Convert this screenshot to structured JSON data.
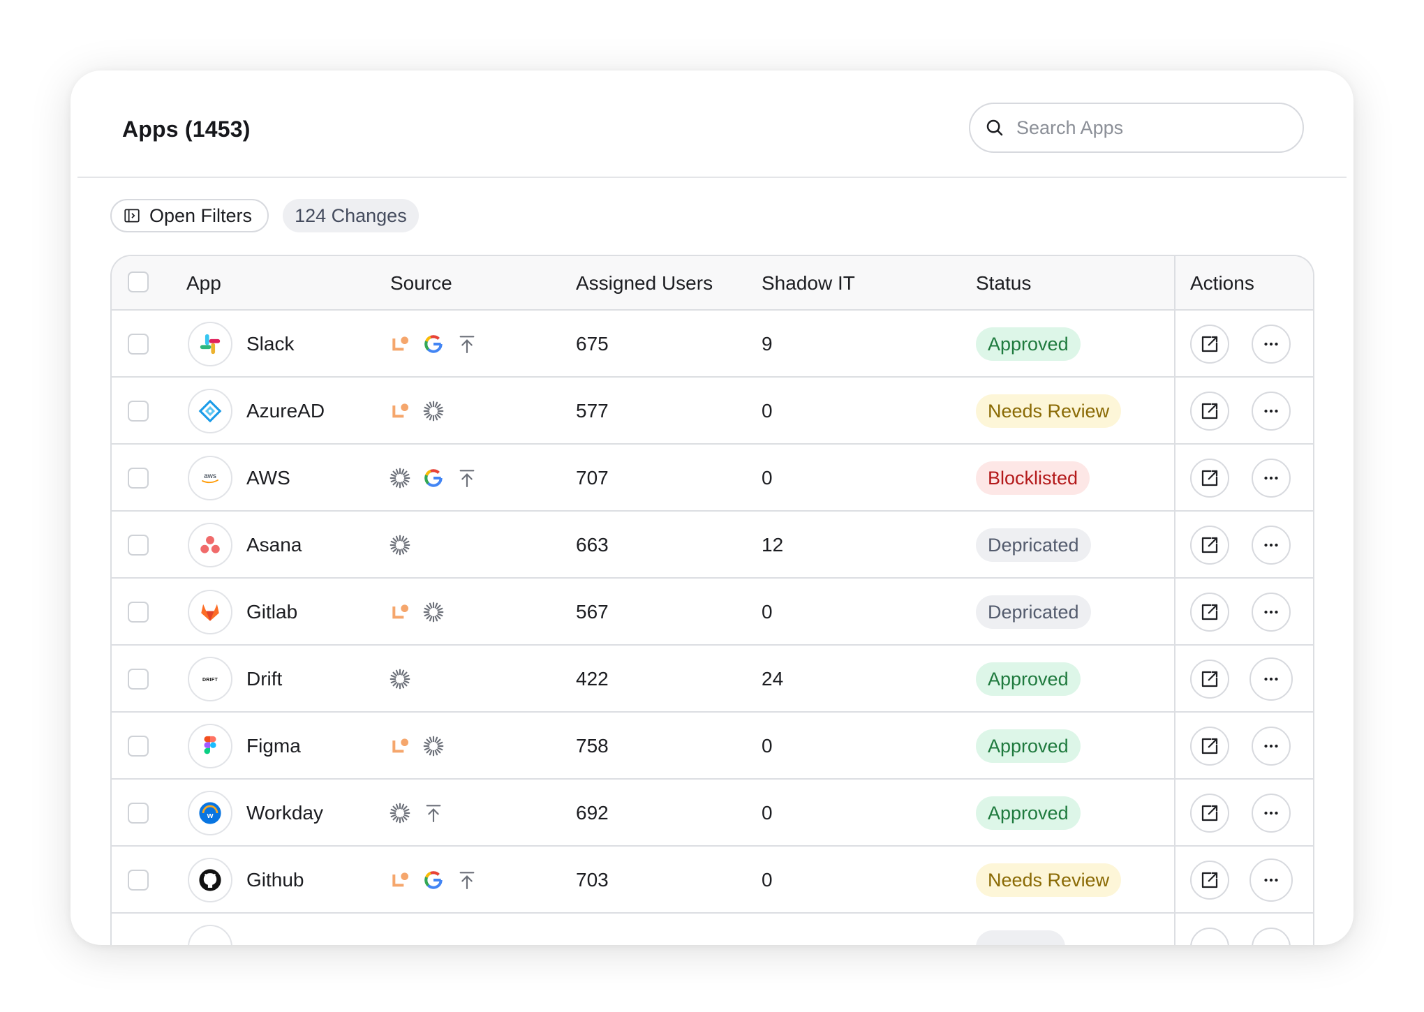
{
  "header": {
    "title": "Apps (1453)",
    "search_placeholder": "Search Apps"
  },
  "toolbar": {
    "filters_label": "Open Filters",
    "changes_label": "124 Changes"
  },
  "table": {
    "columns": {
      "app": "App",
      "source": "Source",
      "assigned_users": "Assigned Users",
      "shadow_it": "Shadow IT",
      "status": "Status",
      "actions": "Actions"
    },
    "rows": [
      {
        "name": "Slack",
        "logo": "slack-logo",
        "sources": [
          "lumos-icon",
          "google-icon",
          "upload-icon"
        ],
        "assigned_users": "675",
        "shadow_it": "9",
        "status": "Approved",
        "status_kind": "approved"
      },
      {
        "name": "AzureAD",
        "logo": "azuread-logo",
        "sources": [
          "lumos-icon",
          "sync-icon"
        ],
        "assigned_users": "577",
        "shadow_it": "0",
        "status": "Needs Review",
        "status_kind": "review"
      },
      {
        "name": "AWS",
        "logo": "aws-logo",
        "sources": [
          "sync-icon",
          "google-icon",
          "upload-icon"
        ],
        "assigned_users": "707",
        "shadow_it": "0",
        "status": "Blocklisted",
        "status_kind": "blocked"
      },
      {
        "name": "Asana",
        "logo": "asana-logo",
        "sources": [
          "sync-icon"
        ],
        "assigned_users": "663",
        "shadow_it": "12",
        "status": "Depricated",
        "status_kind": "depricated"
      },
      {
        "name": "Gitlab",
        "logo": "gitlab-logo",
        "sources": [
          "lumos-icon",
          "sync-icon"
        ],
        "assigned_users": "567",
        "shadow_it": "0",
        "status": "Depricated",
        "status_kind": "depricated"
      },
      {
        "name": "Drift",
        "logo": "drift-logo",
        "sources": [
          "sync-icon"
        ],
        "assigned_users": "422",
        "shadow_it": "24",
        "status": "Approved",
        "status_kind": "approved"
      },
      {
        "name": "Figma",
        "logo": "figma-logo",
        "sources": [
          "lumos-icon",
          "sync-icon"
        ],
        "assigned_users": "758",
        "shadow_it": "0",
        "status": "Approved",
        "status_kind": "approved"
      },
      {
        "name": "Workday",
        "logo": "workday-logo",
        "sources": [
          "sync-icon",
          "upload-icon"
        ],
        "assigned_users": "692",
        "shadow_it": "0",
        "status": "Approved",
        "status_kind": "approved"
      },
      {
        "name": "Github",
        "logo": "github-logo",
        "sources": [
          "lumos-icon",
          "google-icon",
          "upload-icon"
        ],
        "assigned_users": "703",
        "shadow_it": "0",
        "status": "Needs Review",
        "status_kind": "review"
      }
    ]
  },
  "colors": {
    "approved_bg": "#ddf6e8",
    "approved_text": "#1f7a3e",
    "review_bg": "#fdf6d8",
    "review_text": "#8a6a05",
    "blocked_bg": "#fde7e6",
    "blocked_text": "#b3191a",
    "depricated_bg": "#eeeff2",
    "depricated_text": "#535b6d",
    "lumos_orange": "#f5a66c"
  }
}
